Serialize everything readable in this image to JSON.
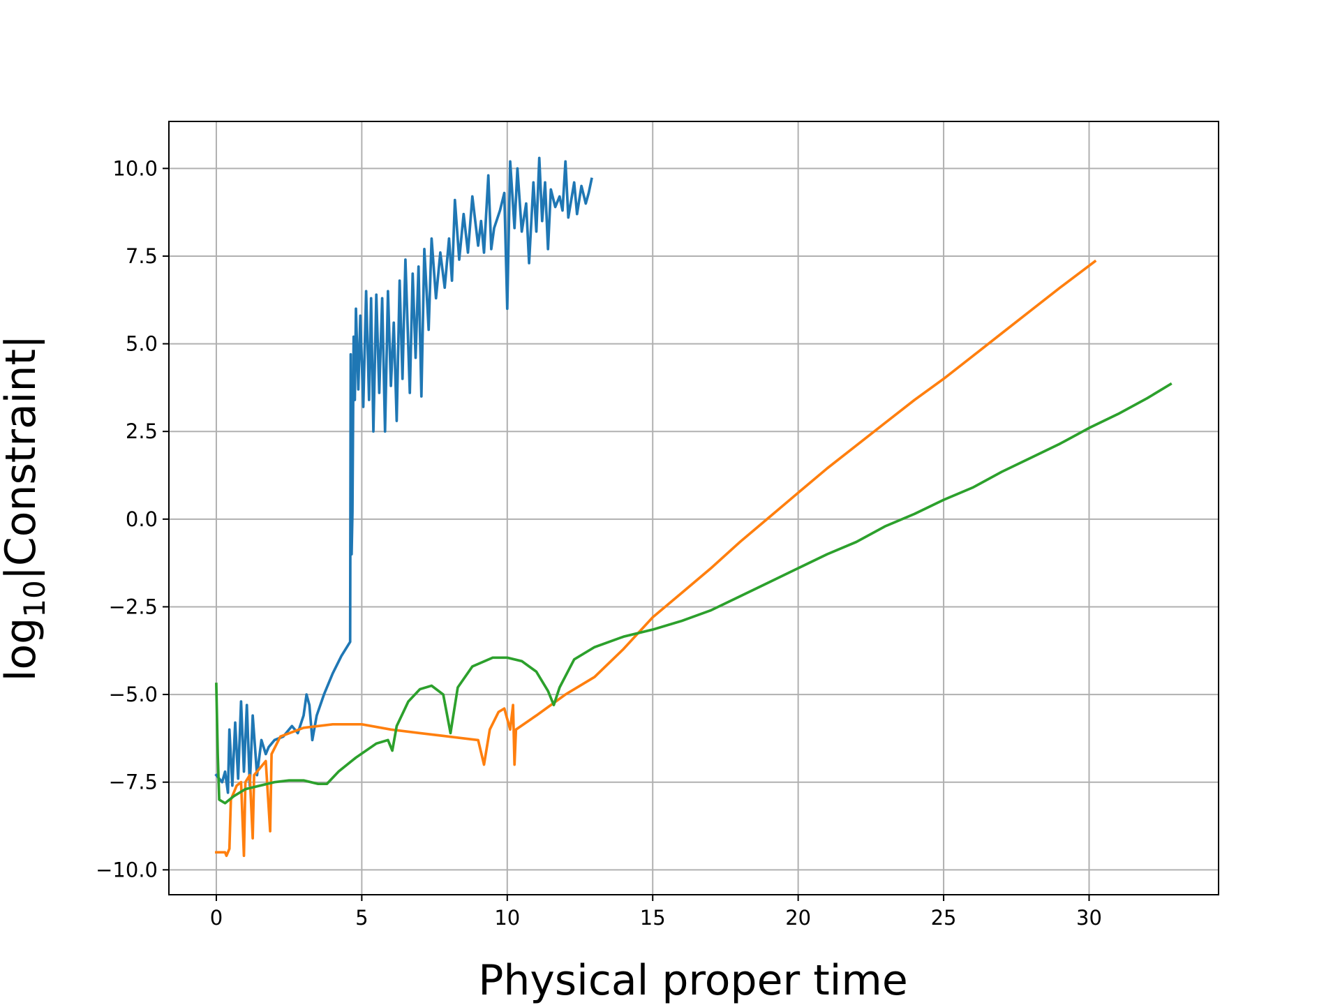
{
  "chart_data": {
    "type": "line",
    "xlabel": "Physical proper time",
    "ylabel": [
      "log",
      "10",
      "|Constraint|"
    ],
    "xlim": [
      -1.63,
      34.45
    ],
    "ylim": [
      -10.71,
      11.34
    ],
    "xticks": [
      0,
      5,
      10,
      15,
      20,
      25,
      30
    ],
    "yticks": [
      {
        "value": -10,
        "label": "−10.0"
      },
      {
        "value": -7.5,
        "label": "−7.5"
      },
      {
        "value": -5,
        "label": "−5.0"
      },
      {
        "value": -2.5,
        "label": "−2.5"
      },
      {
        "value": 0,
        "label": "0.0"
      },
      2.5,
      {
        "value": 5,
        "label": "5.0"
      },
      7.5,
      {
        "value": 10,
        "label": "10.0"
      }
    ],
    "grid": true,
    "series": [
      {
        "color": "#1f77b4",
        "x": [
          0,
          0.2,
          0.3,
          0.4,
          0.45,
          0.55,
          0.65,
          0.75,
          0.85,
          0.95,
          1.05,
          1.15,
          1.25,
          1.4,
          1.55,
          1.7,
          1.8,
          2.0,
          2.3,
          2.6,
          2.8,
          3.0,
          3.1,
          3.2,
          3.3,
          3.45,
          3.7,
          4.0,
          4.3,
          4.6,
          4.62,
          4.65,
          4.68,
          4.72,
          4.76,
          4.8,
          4.88,
          4.95,
          5.05,
          5.15,
          5.25,
          5.32,
          5.4,
          5.5,
          5.6,
          5.7,
          5.8,
          5.9,
          6.0,
          6.1,
          6.2,
          6.3,
          6.4,
          6.5,
          6.65,
          6.75,
          6.85,
          6.95,
          7.05,
          7.15,
          7.3,
          7.4,
          7.55,
          7.7,
          7.85,
          8.0,
          8.1,
          8.2,
          8.35,
          8.5,
          8.65,
          8.8,
          9.0,
          9.1,
          9.2,
          9.35,
          9.45,
          9.55,
          9.75,
          9.9,
          10.0,
          10.1,
          10.25,
          10.35,
          10.5,
          10.65,
          10.75,
          10.9,
          11.0,
          11.1,
          11.2,
          11.3,
          11.4,
          11.5,
          11.65,
          11.8,
          11.9,
          12.0,
          12.1,
          12.3,
          12.4,
          12.55,
          12.7,
          12.8,
          12.9
        ],
        "values": [
          -7.3,
          -7.5,
          -7.2,
          -7.8,
          -6.0,
          -7.6,
          -5.8,
          -7.4,
          -5.2,
          -7.2,
          -5.3,
          -7.6,
          -5.6,
          -7.3,
          -6.3,
          -6.7,
          -6.5,
          -6.3,
          -6.2,
          -5.9,
          -6.1,
          -5.6,
          -5.0,
          -5.3,
          -6.3,
          -5.6,
          -5.0,
          -4.4,
          -3.9,
          -3.5,
          4.7,
          -1.0,
          0.2,
          5.2,
          3.4,
          6.0,
          3.7,
          5.8,
          3.2,
          6.5,
          3.4,
          6.3,
          2.5,
          6.4,
          3.6,
          6.3,
          2.5,
          6.5,
          3.8,
          5.6,
          2.8,
          6.8,
          4.0,
          7.4,
          3.6,
          7.0,
          4.6,
          7.2,
          3.5,
          7.7,
          5.4,
          8.0,
          6.3,
          7.6,
          6.6,
          8.0,
          6.8,
          9.1,
          7.4,
          8.7,
          7.6,
          9.2,
          7.8,
          8.5,
          7.6,
          9.8,
          7.7,
          8.3,
          8.8,
          9.3,
          6.0,
          10.2,
          8.3,
          10.0,
          8.2,
          9.0,
          7.3,
          9.6,
          8.2,
          10.3,
          8.5,
          9.6,
          7.7,
          9.4,
          8.9,
          9.2,
          8.8,
          10.2,
          8.6,
          9.6,
          8.7,
          9.5,
          9.0,
          9.3,
          9.7
        ]
      },
      {
        "color": "#ff7f0e",
        "x": [
          0,
          0.3,
          0.35,
          0.45,
          0.5,
          0.7,
          0.85,
          0.95,
          1.0,
          1.15,
          1.25,
          1.3,
          1.5,
          1.7,
          1.85,
          1.9,
          2.2,
          3,
          4,
          5,
          6,
          7,
          8,
          9,
          9.2,
          9.4,
          9.7,
          9.9,
          10.1,
          10.2,
          10.25,
          10.3,
          11,
          12,
          13,
          14,
          15,
          16,
          17,
          18,
          19,
          20,
          21,
          22,
          23,
          24,
          25,
          26,
          27,
          28,
          29,
          30.2
        ],
        "values": [
          -9.5,
          -9.5,
          -9.6,
          -9.4,
          -8.0,
          -7.6,
          -7.5,
          -9.6,
          -7.5,
          -7.3,
          -9.1,
          -7.3,
          -7.1,
          -6.9,
          -8.9,
          -6.7,
          -6.2,
          -5.95,
          -5.85,
          -5.85,
          -6.0,
          -6.1,
          -6.2,
          -6.3,
          -7.0,
          -6.0,
          -5.5,
          -5.4,
          -6.0,
          -5.3,
          -7.0,
          -6.0,
          -5.6,
          -5.0,
          -4.5,
          -3.7,
          -2.8,
          -2.1,
          -1.4,
          -0.65,
          0.05,
          0.75,
          1.45,
          2.1,
          2.75,
          3.4,
          4.0,
          4.65,
          5.3,
          5.95,
          6.6,
          7.35
        ]
      },
      {
        "color": "#2ca02c",
        "x": [
          0,
          0.05,
          0.1,
          0.3,
          0.6,
          1,
          1.5,
          2,
          2.5,
          3,
          3.5,
          3.8,
          4.2,
          4.8,
          5.5,
          5.9,
          6.05,
          6.2,
          6.6,
          7,
          7.4,
          7.8,
          8.05,
          8.3,
          8.8,
          9.5,
          10,
          10.5,
          11,
          11.4,
          11.6,
          11.8,
          12.3,
          13,
          14,
          15,
          16,
          17,
          18,
          19,
          20,
          21,
          22,
          23,
          24,
          25,
          26,
          27,
          28,
          29,
          30,
          31,
          32,
          32.8
        ],
        "values": [
          -4.7,
          -6.7,
          -8.0,
          -8.1,
          -7.9,
          -7.7,
          -7.6,
          -7.5,
          -7.45,
          -7.45,
          -7.55,
          -7.55,
          -7.2,
          -6.8,
          -6.4,
          -6.3,
          -6.6,
          -5.9,
          -5.2,
          -4.85,
          -4.75,
          -5.0,
          -6.1,
          -4.8,
          -4.2,
          -3.95,
          -3.95,
          -4.05,
          -4.35,
          -4.9,
          -5.3,
          -4.8,
          -4.0,
          -3.65,
          -3.35,
          -3.15,
          -2.9,
          -2.6,
          -2.2,
          -1.8,
          -1.4,
          -1.0,
          -0.65,
          -0.2,
          0.15,
          0.55,
          0.9,
          1.35,
          1.75,
          2.15,
          2.6,
          3.0,
          3.45,
          3.85
        ]
      }
    ]
  }
}
